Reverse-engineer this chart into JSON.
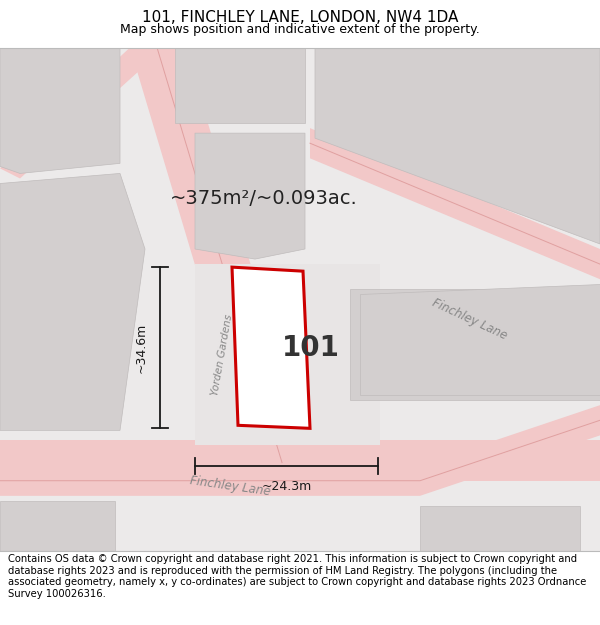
{
  "title": "101, FINCHLEY LANE, LONDON, NW4 1DA",
  "subtitle": "Map shows position and indicative extent of the property.",
  "footer": "Contains OS data © Crown copyright and database right 2021. This information is subject to Crown copyright and database rights 2023 and is reproduced with the permission of HM Land Registry. The polygons (including the associated geometry, namely x, y co-ordinates) are subject to Crown copyright and database rights 2023 Ordnance Survey 100026316.",
  "area_label": "~375m²/~0.093ac.",
  "property_number": "101",
  "dim_width": "~24.3m",
  "dim_height": "~34.6m",
  "road_label_finchley_bottom": "Finchley Lane",
  "road_label_finchley_right": "Finchley Lane",
  "road_label_yorden": "Yorden Gardens",
  "map_bg": "#ebe8e8",
  "road_fill": "#f2c8c8",
  "road_center": "#e0a0a0",
  "building_fill": "#d3cfcf",
  "building_edge": "#c0bcbc",
  "property_outline_color": "#cc0000",
  "property_fill": "#ffffff",
  "dim_color": "#1a1a1a",
  "label_color": "#222222",
  "road_text_color": "#888888",
  "title_fontsize": 11,
  "subtitle_fontsize": 9,
  "footer_fontsize": 7.2,
  "area_fontsize": 14,
  "number_fontsize": 20,
  "dim_fontsize": 9,
  "road_fontsize": 8.5
}
